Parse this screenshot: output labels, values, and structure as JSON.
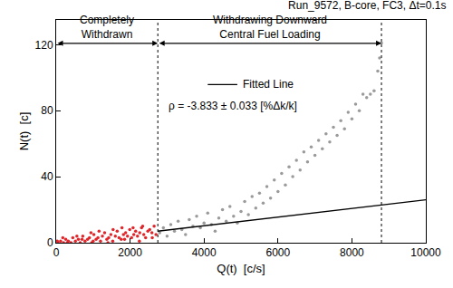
{
  "chart_data": {
    "type": "scatter",
    "title": "Run_9572, B-core, FC3, Δt=0.1s",
    "x_label": "Q(t)  [c/s]",
    "y_label": "N(t)  [c]",
    "xlim": [
      0,
      10000
    ],
    "ylim": [
      0,
      135
    ],
    "xticks": [
      0,
      2000,
      4000,
      6000,
      8000,
      10000
    ],
    "yticks": [
      0,
      40,
      80,
      120
    ],
    "grid": false,
    "annotations": [
      "ρ = -3.833 ± 0.033 [%Δk/k]"
    ],
    "regions": [
      {
        "lines": [
          "Completely",
          "Withdrawn"
        ],
        "x": [
          0,
          2750
        ]
      },
      {
        "lines": [
          "Withdrawing Downward",
          "Central Fuel Loading"
        ],
        "x": [
          2750,
          8800
        ]
      }
    ],
    "series": [
      {
        "type": "scatter",
        "marker": "circle",
        "color": "#e0262b",
        "x": [
          50,
          120,
          200,
          260,
          330,
          400,
          450,
          520,
          600,
          650,
          720,
          780,
          850,
          900,
          960,
          1020,
          1080,
          1130,
          1200,
          1250,
          1310,
          1370,
          1420,
          1480,
          1530,
          1600,
          1650,
          1700,
          1760,
          1820,
          1880,
          1930,
          1990,
          2040,
          2100,
          2150,
          2200,
          2260,
          2310,
          2370,
          2420,
          2480,
          2530,
          2590,
          2650,
          2700,
          180,
          560,
          940,
          1160,
          1540,
          1780,
          2080,
          2340,
          30,
          300,
          700,
          1000,
          1400,
          1850,
          2250,
          2600
        ],
        "values": [
          0,
          1,
          0,
          2,
          1,
          0,
          3,
          1,
          2,
          0,
          4,
          1,
          2,
          3,
          0,
          5,
          2,
          3,
          1,
          4,
          6,
          2,
          3,
          5,
          1,
          4,
          7,
          3,
          2,
          5,
          6,
          4,
          8,
          3,
          5,
          7,
          4,
          6,
          9,
          5,
          3,
          7,
          8,
          6,
          10,
          5,
          3,
          4,
          6,
          7,
          8,
          9,
          9,
          10,
          1,
          0,
          2,
          1,
          0,
          2,
          1,
          3
        ]
      },
      {
        "type": "scatter",
        "marker": "circle",
        "color": "#9a9a9a",
        "x": [
          2800,
          2900,
          3000,
          3100,
          3200,
          3300,
          3400,
          3500,
          3600,
          3700,
          3800,
          3900,
          4000,
          4100,
          4200,
          4300,
          4400,
          4500,
          4600,
          4700,
          4800,
          4900,
          5000,
          5100,
          5200,
          5300,
          5400,
          5500,
          5600,
          5700,
          5800,
          5900,
          6000,
          6100,
          6200,
          6300,
          6400,
          6500,
          6600,
          6700,
          6800,
          6900,
          7000,
          7100,
          7200,
          7300,
          7400,
          7500,
          7600,
          7700,
          7800,
          7900,
          8000,
          8100,
          8200,
          8300,
          8400,
          8500,
          8600,
          8700,
          8750,
          8800
        ],
        "values": [
          6,
          9,
          4,
          11,
          7,
          13,
          8,
          5,
          14,
          10,
          16,
          9,
          12,
          18,
          11,
          7,
          15,
          20,
          13,
          22,
          16,
          12,
          19,
          25,
          17,
          28,
          21,
          30,
          24,
          34,
          27,
          38,
          31,
          42,
          35,
          46,
          40,
          50,
          44,
          55,
          49,
          58,
          53,
          62,
          57,
          66,
          61,
          70,
          65,
          74,
          69,
          79,
          75,
          84,
          80,
          90,
          88,
          90,
          92,
          104,
          112,
          121
        ]
      },
      {
        "type": "line",
        "name": "Fitted Line",
        "color": "#000000",
        "line_style": "solid",
        "x": [
          2750,
          10000
        ],
        "values": [
          7,
          26
        ]
      }
    ]
  }
}
